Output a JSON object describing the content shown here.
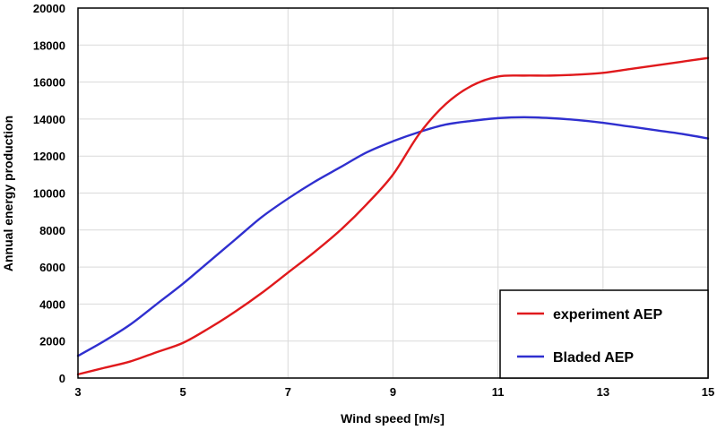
{
  "chart_data": {
    "type": "line",
    "xlabel": "Wind speed [m/s]",
    "ylabel": "Annual energy production",
    "xlim": [
      3,
      15
    ],
    "ylim": [
      0,
      20000
    ],
    "x_ticks": [
      3,
      5,
      7,
      9,
      11,
      13,
      15
    ],
    "y_ticks": [
      0,
      2000,
      4000,
      6000,
      8000,
      10000,
      12000,
      14000,
      16000,
      18000,
      20000
    ],
    "grid": true,
    "legend_position": "bottom-right",
    "series": [
      {
        "name": "experiment AEP",
        "color": "#e0191c",
        "x": [
          3,
          3.5,
          4,
          4.5,
          5,
          5.5,
          6,
          6.5,
          7,
          7.5,
          8,
          8.5,
          9,
          9.5,
          10,
          10.5,
          11,
          11.5,
          12,
          12.5,
          13,
          13.5,
          14,
          14.5,
          15
        ],
        "y": [
          200,
          550,
          900,
          1400,
          1900,
          2700,
          3600,
          4600,
          5700,
          6800,
          8000,
          9400,
          11000,
          13200,
          14800,
          15800,
          16300,
          16350,
          16350,
          16400,
          16500,
          16700,
          16900,
          17100,
          17300
        ]
      },
      {
        "name": "Bladed AEP",
        "color": "#2f2fcf",
        "x": [
          3,
          3.5,
          4,
          4.5,
          5,
          5.5,
          6,
          6.5,
          7,
          7.5,
          8,
          8.5,
          9,
          9.5,
          10,
          10.5,
          11,
          11.5,
          12,
          12.5,
          13,
          13.5,
          14,
          14.5,
          15
        ],
        "y": [
          1200,
          2000,
          2900,
          4000,
          5100,
          6300,
          7500,
          8700,
          9700,
          10600,
          11400,
          12200,
          12800,
          13300,
          13700,
          13900,
          14050,
          14100,
          14050,
          13950,
          13800,
          13600,
          13400,
          13200,
          12950
        ]
      }
    ]
  }
}
